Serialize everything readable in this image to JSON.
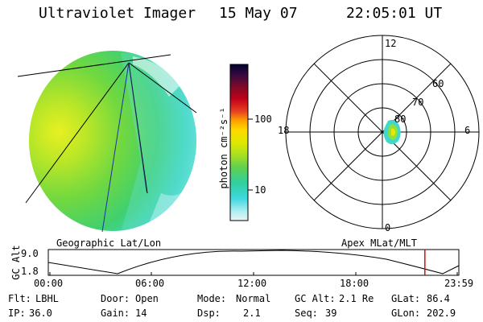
{
  "header": {
    "instrument": "Ultraviolet Imager",
    "date": "15 May 07",
    "time": "22:05:01 UT"
  },
  "geo_panel": {
    "label": "Geographic Lat/Lon"
  },
  "colorbar": {
    "unit_label": "photon cm⁻²s⁻¹",
    "ticks": [
      "100",
      "10"
    ],
    "colors": [
      "#000033",
      "#2a0a3a",
      "#4b0a3a",
      "#7a0a2a",
      "#b3001a",
      "#e0202a",
      "#f06010",
      "#ffa000",
      "#ffd000",
      "#e8e800",
      "#b8e020",
      "#70d040",
      "#30d070",
      "#30d0c0",
      "#60e0e8",
      "#a8f0f0",
      "#e0f4f4"
    ]
  },
  "polar_panel": {
    "label": "Apex MLat/MLT",
    "mlt_labels": {
      "top": "12",
      "bottom": "0",
      "left": "18",
      "right": "6"
    },
    "lat_labels": [
      "60",
      "70",
      "80"
    ]
  },
  "altitude_strip": {
    "ylabel": "GC Alt",
    "ymax": "9.0",
    "ymin": "1.8",
    "xticks": [
      "00:00",
      "06:00",
      "12:00",
      "18:00",
      "23:59"
    ],
    "marker_time_hours": 22.08,
    "marker_color": "#d01010"
  },
  "info": {
    "row1": {
      "filter_label": "Flt:",
      "filter_value": "LBHL",
      "door_label": "Door:",
      "door_value": "Open",
      "mode_label": "Mode:",
      "mode_value": "Normal",
      "gcalt_label": "GC Alt:",
      "gcalt_value": "2.1 Re",
      "glat_label": "GLat:",
      "glat_value": "86.4"
    },
    "row2": {
      "ip_label": "IP:",
      "ip_value": "36.0",
      "gain_label": "Gain:",
      "gain_value": "14",
      "dsp_label": "Dsp:",
      "dsp_value": "2.1",
      "seq_label": "Seq:",
      "seq_value": "39",
      "glon_label": "GLon:",
      "glon_value": "202.9"
    }
  }
}
